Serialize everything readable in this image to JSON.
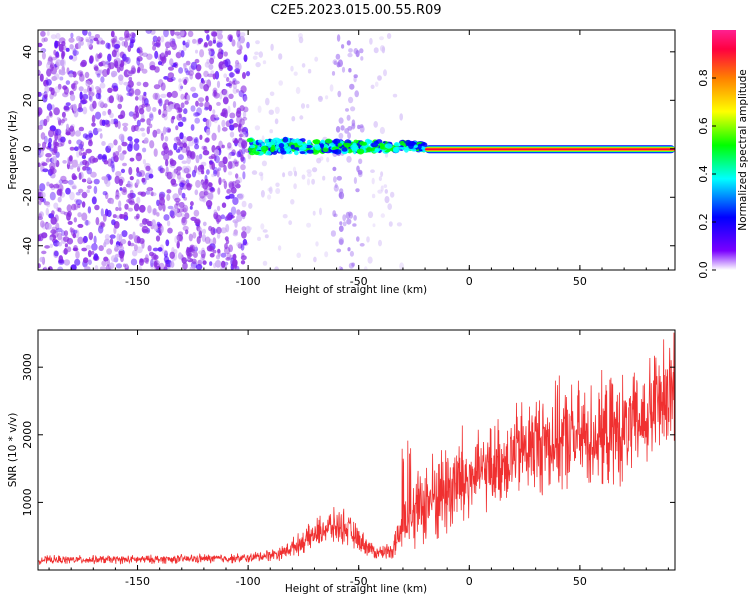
{
  "title": "C2E5.2023.015.00.55.R09",
  "chart_data": [
    {
      "type": "heatmap",
      "xlabel": "Height of straight line (km)",
      "ylabel": "Frequency (Hz)",
      "xlim": [
        -195,
        93
      ],
      "ylim": [
        -50,
        49
      ],
      "x_ticks": [
        -150,
        -100,
        -50,
        0,
        50
      ],
      "y_ticks": [
        -40,
        -20,
        0,
        20,
        40
      ],
      "colorbar": {
        "label": "Normalized spectral amplitude",
        "range": [
          0,
          1
        ],
        "ticks": [
          "0.0",
          "0.2",
          "0.4",
          "0.6",
          "0.8"
        ],
        "colors": [
          "#ffffff",
          "#7a00ff",
          "#0000ff",
          "#00ffff",
          "#00ff00",
          "#ffff00",
          "#ff8000",
          "#ff0040",
          "#ff2090"
        ]
      },
      "features": [
        {
          "description": "noise",
          "x_range": [
            -195,
            -100
          ],
          "amplitude": 0.1
        },
        {
          "description": "carrier line",
          "x_range": [
            -100,
            -20
          ],
          "frequency": 1,
          "amplitude": 0.45
        },
        {
          "description": "strong carrier line",
          "x_range": [
            -20,
            93
          ],
          "frequency": 0,
          "amplitude": 1.0
        }
      ]
    },
    {
      "type": "line",
      "xlabel": "Height of straight line (km)",
      "ylabel": "SNR (10 * v/v)",
      "xlim": [
        -195,
        93
      ],
      "ylim": [
        0,
        3550
      ],
      "x_ticks": [
        -150,
        -100,
        -50,
        0,
        50
      ],
      "y_ticks": [
        1000,
        2000,
        3000
      ],
      "color": "#f03030",
      "trend": [
        [
          -195,
          150
        ],
        [
          -150,
          155
        ],
        [
          -100,
          175
        ],
        [
          -85,
          250
        ],
        [
          -75,
          420
        ],
        [
          -65,
          620
        ],
        [
          -57,
          650
        ],
        [
          -50,
          450
        ],
        [
          -42,
          250
        ],
        [
          -35,
          300
        ],
        [
          -28,
          750
        ],
        [
          -20,
          1000
        ],
        [
          -10,
          1200
        ],
        [
          0,
          1350
        ],
        [
          10,
          1520
        ],
        [
          20,
          1720
        ],
        [
          30,
          1870
        ],
        [
          40,
          1940
        ],
        [
          50,
          1960
        ],
        [
          60,
          2000
        ],
        [
          70,
          2050
        ],
        [
          80,
          2250
        ],
        [
          88,
          2600
        ],
        [
          93,
          2800
        ]
      ]
    }
  ]
}
